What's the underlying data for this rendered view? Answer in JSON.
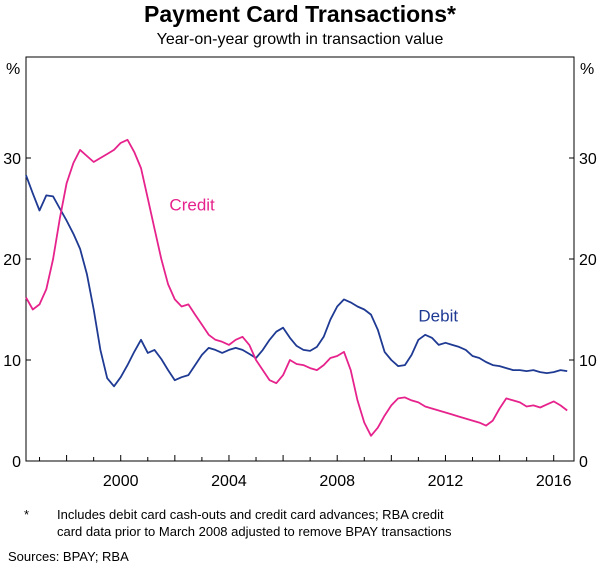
{
  "chart_data": {
    "type": "line",
    "title": "Payment Card Transactions*",
    "subtitle": "Year-on-year growth in transaction value",
    "ylabel_left": "%",
    "ylabel_right": "%",
    "ylim": [
      0,
      40
    ],
    "yticks": [
      0,
      10,
      20,
      30
    ],
    "xlim": [
      1996.5,
      2016.75
    ],
    "xticks": [
      2000,
      2004,
      2008,
      2012,
      2016
    ],
    "grid": false,
    "series": [
      {
        "name": "Debit",
        "color": "#1f3a93",
        "points": [
          [
            1996.5,
            28.3
          ],
          [
            1996.75,
            26.5
          ],
          [
            1997.0,
            24.8
          ],
          [
            1997.25,
            26.3
          ],
          [
            1997.5,
            26.2
          ],
          [
            1997.75,
            25.0
          ],
          [
            1998.0,
            23.8
          ],
          [
            1998.25,
            22.5
          ],
          [
            1998.5,
            21.0
          ],
          [
            1998.75,
            18.5
          ],
          [
            1999.0,
            15.0
          ],
          [
            1999.25,
            11.0
          ],
          [
            1999.5,
            8.2
          ],
          [
            1999.75,
            7.4
          ],
          [
            2000.0,
            8.3
          ],
          [
            2000.25,
            9.5
          ],
          [
            2000.5,
            10.8
          ],
          [
            2000.75,
            12.0
          ],
          [
            2001.0,
            10.7
          ],
          [
            2001.25,
            11.0
          ],
          [
            2001.5,
            10.1
          ],
          [
            2001.75,
            9.0
          ],
          [
            2002.0,
            8.0
          ],
          [
            2002.25,
            8.3
          ],
          [
            2002.5,
            8.5
          ],
          [
            2002.75,
            9.5
          ],
          [
            2003.0,
            10.5
          ],
          [
            2003.25,
            11.2
          ],
          [
            2003.5,
            11.0
          ],
          [
            2003.75,
            10.7
          ],
          [
            2004.0,
            11.0
          ],
          [
            2004.25,
            11.2
          ],
          [
            2004.5,
            11.0
          ],
          [
            2004.75,
            10.6
          ],
          [
            2005.0,
            10.2
          ],
          [
            2005.25,
            11.0
          ],
          [
            2005.5,
            12.0
          ],
          [
            2005.75,
            12.8
          ],
          [
            2006.0,
            13.2
          ],
          [
            2006.25,
            12.2
          ],
          [
            2006.5,
            11.4
          ],
          [
            2006.75,
            11.0
          ],
          [
            2007.0,
            10.9
          ],
          [
            2007.25,
            11.3
          ],
          [
            2007.5,
            12.3
          ],
          [
            2007.75,
            14.0
          ],
          [
            2008.0,
            15.3
          ],
          [
            2008.25,
            16.0
          ],
          [
            2008.5,
            15.7
          ],
          [
            2008.75,
            15.3
          ],
          [
            2009.0,
            15.0
          ],
          [
            2009.25,
            14.5
          ],
          [
            2009.5,
            13.0
          ],
          [
            2009.75,
            10.8
          ],
          [
            2010.0,
            10.0
          ],
          [
            2010.25,
            9.4
          ],
          [
            2010.5,
            9.5
          ],
          [
            2010.75,
            10.5
          ],
          [
            2011.0,
            12.0
          ],
          [
            2011.25,
            12.5
          ],
          [
            2011.5,
            12.2
          ],
          [
            2011.75,
            11.5
          ],
          [
            2012.0,
            11.7
          ],
          [
            2012.25,
            11.5
          ],
          [
            2012.5,
            11.3
          ],
          [
            2012.75,
            11.0
          ],
          [
            2013.0,
            10.4
          ],
          [
            2013.25,
            10.2
          ],
          [
            2013.5,
            9.8
          ],
          [
            2013.75,
            9.5
          ],
          [
            2014.0,
            9.4
          ],
          [
            2014.25,
            9.2
          ],
          [
            2014.5,
            9.0
          ],
          [
            2014.75,
            9.0
          ],
          [
            2015.0,
            8.9
          ],
          [
            2015.25,
            9.0
          ],
          [
            2015.5,
            8.8
          ],
          [
            2015.75,
            8.7
          ],
          [
            2016.0,
            8.8
          ],
          [
            2016.25,
            9.0
          ],
          [
            2016.5,
            8.9
          ]
        ]
      },
      {
        "name": "Credit",
        "color": "#e6238c",
        "points": [
          [
            1996.5,
            16.2
          ],
          [
            1996.75,
            15.0
          ],
          [
            1997.0,
            15.5
          ],
          [
            1997.25,
            17.0
          ],
          [
            1997.5,
            20.0
          ],
          [
            1997.75,
            24.0
          ],
          [
            1998.0,
            27.5
          ],
          [
            1998.25,
            29.5
          ],
          [
            1998.5,
            30.8
          ],
          [
            1998.75,
            30.2
          ],
          [
            1999.0,
            29.6
          ],
          [
            1999.25,
            30.0
          ],
          [
            1999.5,
            30.4
          ],
          [
            1999.75,
            30.8
          ],
          [
            2000.0,
            31.5
          ],
          [
            2000.25,
            31.8
          ],
          [
            2000.5,
            30.6
          ],
          [
            2000.75,
            29.0
          ],
          [
            2001.0,
            26.0
          ],
          [
            2001.25,
            23.0
          ],
          [
            2001.5,
            20.0
          ],
          [
            2001.75,
            17.5
          ],
          [
            2002.0,
            16.0
          ],
          [
            2002.25,
            15.3
          ],
          [
            2002.5,
            15.5
          ],
          [
            2002.75,
            14.5
          ],
          [
            2003.0,
            13.5
          ],
          [
            2003.25,
            12.5
          ],
          [
            2003.5,
            12.0
          ],
          [
            2003.75,
            11.8
          ],
          [
            2004.0,
            11.5
          ],
          [
            2004.25,
            12.0
          ],
          [
            2004.5,
            12.3
          ],
          [
            2004.75,
            11.5
          ],
          [
            2005.0,
            10.0
          ],
          [
            2005.25,
            9.0
          ],
          [
            2005.5,
            8.0
          ],
          [
            2005.75,
            7.7
          ],
          [
            2006.0,
            8.5
          ],
          [
            2006.25,
            10.0
          ],
          [
            2006.5,
            9.6
          ],
          [
            2006.75,
            9.5
          ],
          [
            2007.0,
            9.2
          ],
          [
            2007.25,
            9.0
          ],
          [
            2007.5,
            9.5
          ],
          [
            2007.75,
            10.2
          ],
          [
            2008.0,
            10.4
          ],
          [
            2008.25,
            10.8
          ],
          [
            2008.5,
            9.0
          ],
          [
            2008.75,
            6.0
          ],
          [
            2009.0,
            3.8
          ],
          [
            2009.25,
            2.5
          ],
          [
            2009.5,
            3.3
          ],
          [
            2009.75,
            4.5
          ],
          [
            2010.0,
            5.5
          ],
          [
            2010.25,
            6.2
          ],
          [
            2010.5,
            6.3
          ],
          [
            2010.75,
            6.0
          ],
          [
            2011.0,
            5.8
          ],
          [
            2011.25,
            5.4
          ],
          [
            2011.5,
            5.2
          ],
          [
            2011.75,
            5.0
          ],
          [
            2012.0,
            4.8
          ],
          [
            2012.25,
            4.6
          ],
          [
            2012.5,
            4.4
          ],
          [
            2012.75,
            4.2
          ],
          [
            2013.0,
            4.0
          ],
          [
            2013.25,
            3.8
          ],
          [
            2013.5,
            3.5
          ],
          [
            2013.75,
            4.0
          ],
          [
            2014.0,
            5.2
          ],
          [
            2014.25,
            6.2
          ],
          [
            2014.5,
            6.0
          ],
          [
            2014.75,
            5.8
          ],
          [
            2015.0,
            5.4
          ],
          [
            2015.25,
            5.5
          ],
          [
            2015.5,
            5.3
          ],
          [
            2015.75,
            5.6
          ],
          [
            2016.0,
            5.9
          ],
          [
            2016.25,
            5.5
          ],
          [
            2016.5,
            5.0
          ]
        ]
      }
    ],
    "annotations": [
      {
        "text": "Credit",
        "x": 2001.8,
        "y": 24.8,
        "series": "Credit"
      },
      {
        "text": "Debit",
        "x": 2011.0,
        "y": 13.8,
        "series": "Debit"
      }
    ]
  },
  "footnote": {
    "mark": "*",
    "lines": [
      "Includes debit card cash-outs and credit card advances; RBA credit",
      "card data prior to March 2008 adjusted to remove BPAY transactions"
    ]
  },
  "sources": "Sources:   BPAY; RBA"
}
